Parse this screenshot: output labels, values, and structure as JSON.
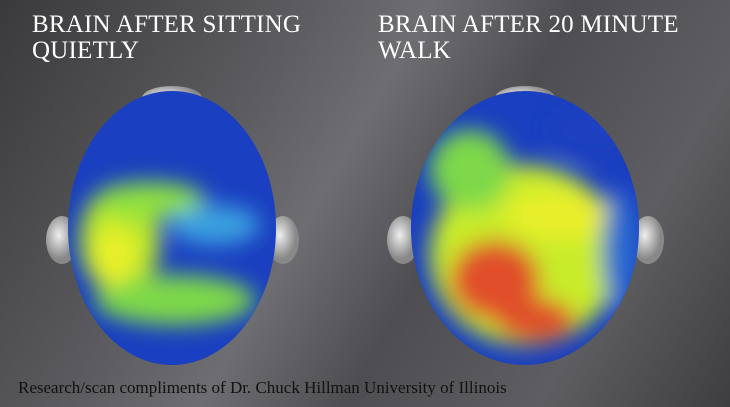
{
  "left_panel": {
    "title_line1": "BRAIN AFTER SITTING",
    "title_line2": "QUIETLY"
  },
  "right_panel": {
    "title_line1": "BRAIN AFTER 20 MINUTE",
    "title_line2": "WALK"
  },
  "caption": "Research/scan  compliments of Dr. Chuck Hillman University of Illinois",
  "colors": {
    "low_activity": "#1a3fc0",
    "mid_activity": "#e8ef2a",
    "high_activity": "#e0502a",
    "title": "#ffffff"
  }
}
